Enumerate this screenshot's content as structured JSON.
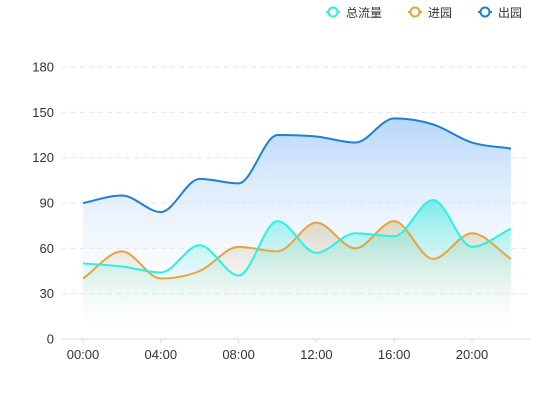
{
  "chart_data": {
    "type": "area",
    "x": [
      "00:00",
      "02:00",
      "04:00",
      "06:00",
      "08:00",
      "10:00",
      "12:00",
      "14:00",
      "16:00",
      "18:00",
      "20:00",
      "22:00"
    ],
    "x_tick_labels": [
      "00:00",
      "04:00",
      "08:00",
      "12:00",
      "16:00",
      "20:00"
    ],
    "y_tick_labels": [
      "0",
      "30",
      "60",
      "90",
      "120",
      "150",
      "180"
    ],
    "ylim": [
      0,
      180
    ],
    "grid": "horizontal dashed",
    "legend_position": "top-right",
    "series": [
      {
        "name": "总流量",
        "color": "#2ef0e0",
        "fill_top": "#34e9dd",
        "values": [
          50,
          48,
          44,
          62,
          42,
          78,
          57,
          70,
          68,
          92,
          61,
          73
        ]
      },
      {
        "name": "进园",
        "color": "#e8a33c",
        "fill_top": "#d2c4a6",
        "values": [
          40,
          58,
          40,
          45,
          61,
          58,
          77,
          60,
          78,
          53,
          70,
          53
        ]
      },
      {
        "name": "出园",
        "color": "#1c7fd8",
        "fill_top": "#a9cff9",
        "values": [
          90,
          95,
          84,
          106,
          103,
          135,
          134,
          130,
          146,
          142,
          130,
          126
        ]
      }
    ]
  },
  "legend": {
    "items": [
      {
        "label": "总流量",
        "color": "#2ef0e0"
      },
      {
        "label": "进园",
        "color": "#e8a33c"
      },
      {
        "label": "出园",
        "color": "#1c7fd8"
      }
    ]
  }
}
